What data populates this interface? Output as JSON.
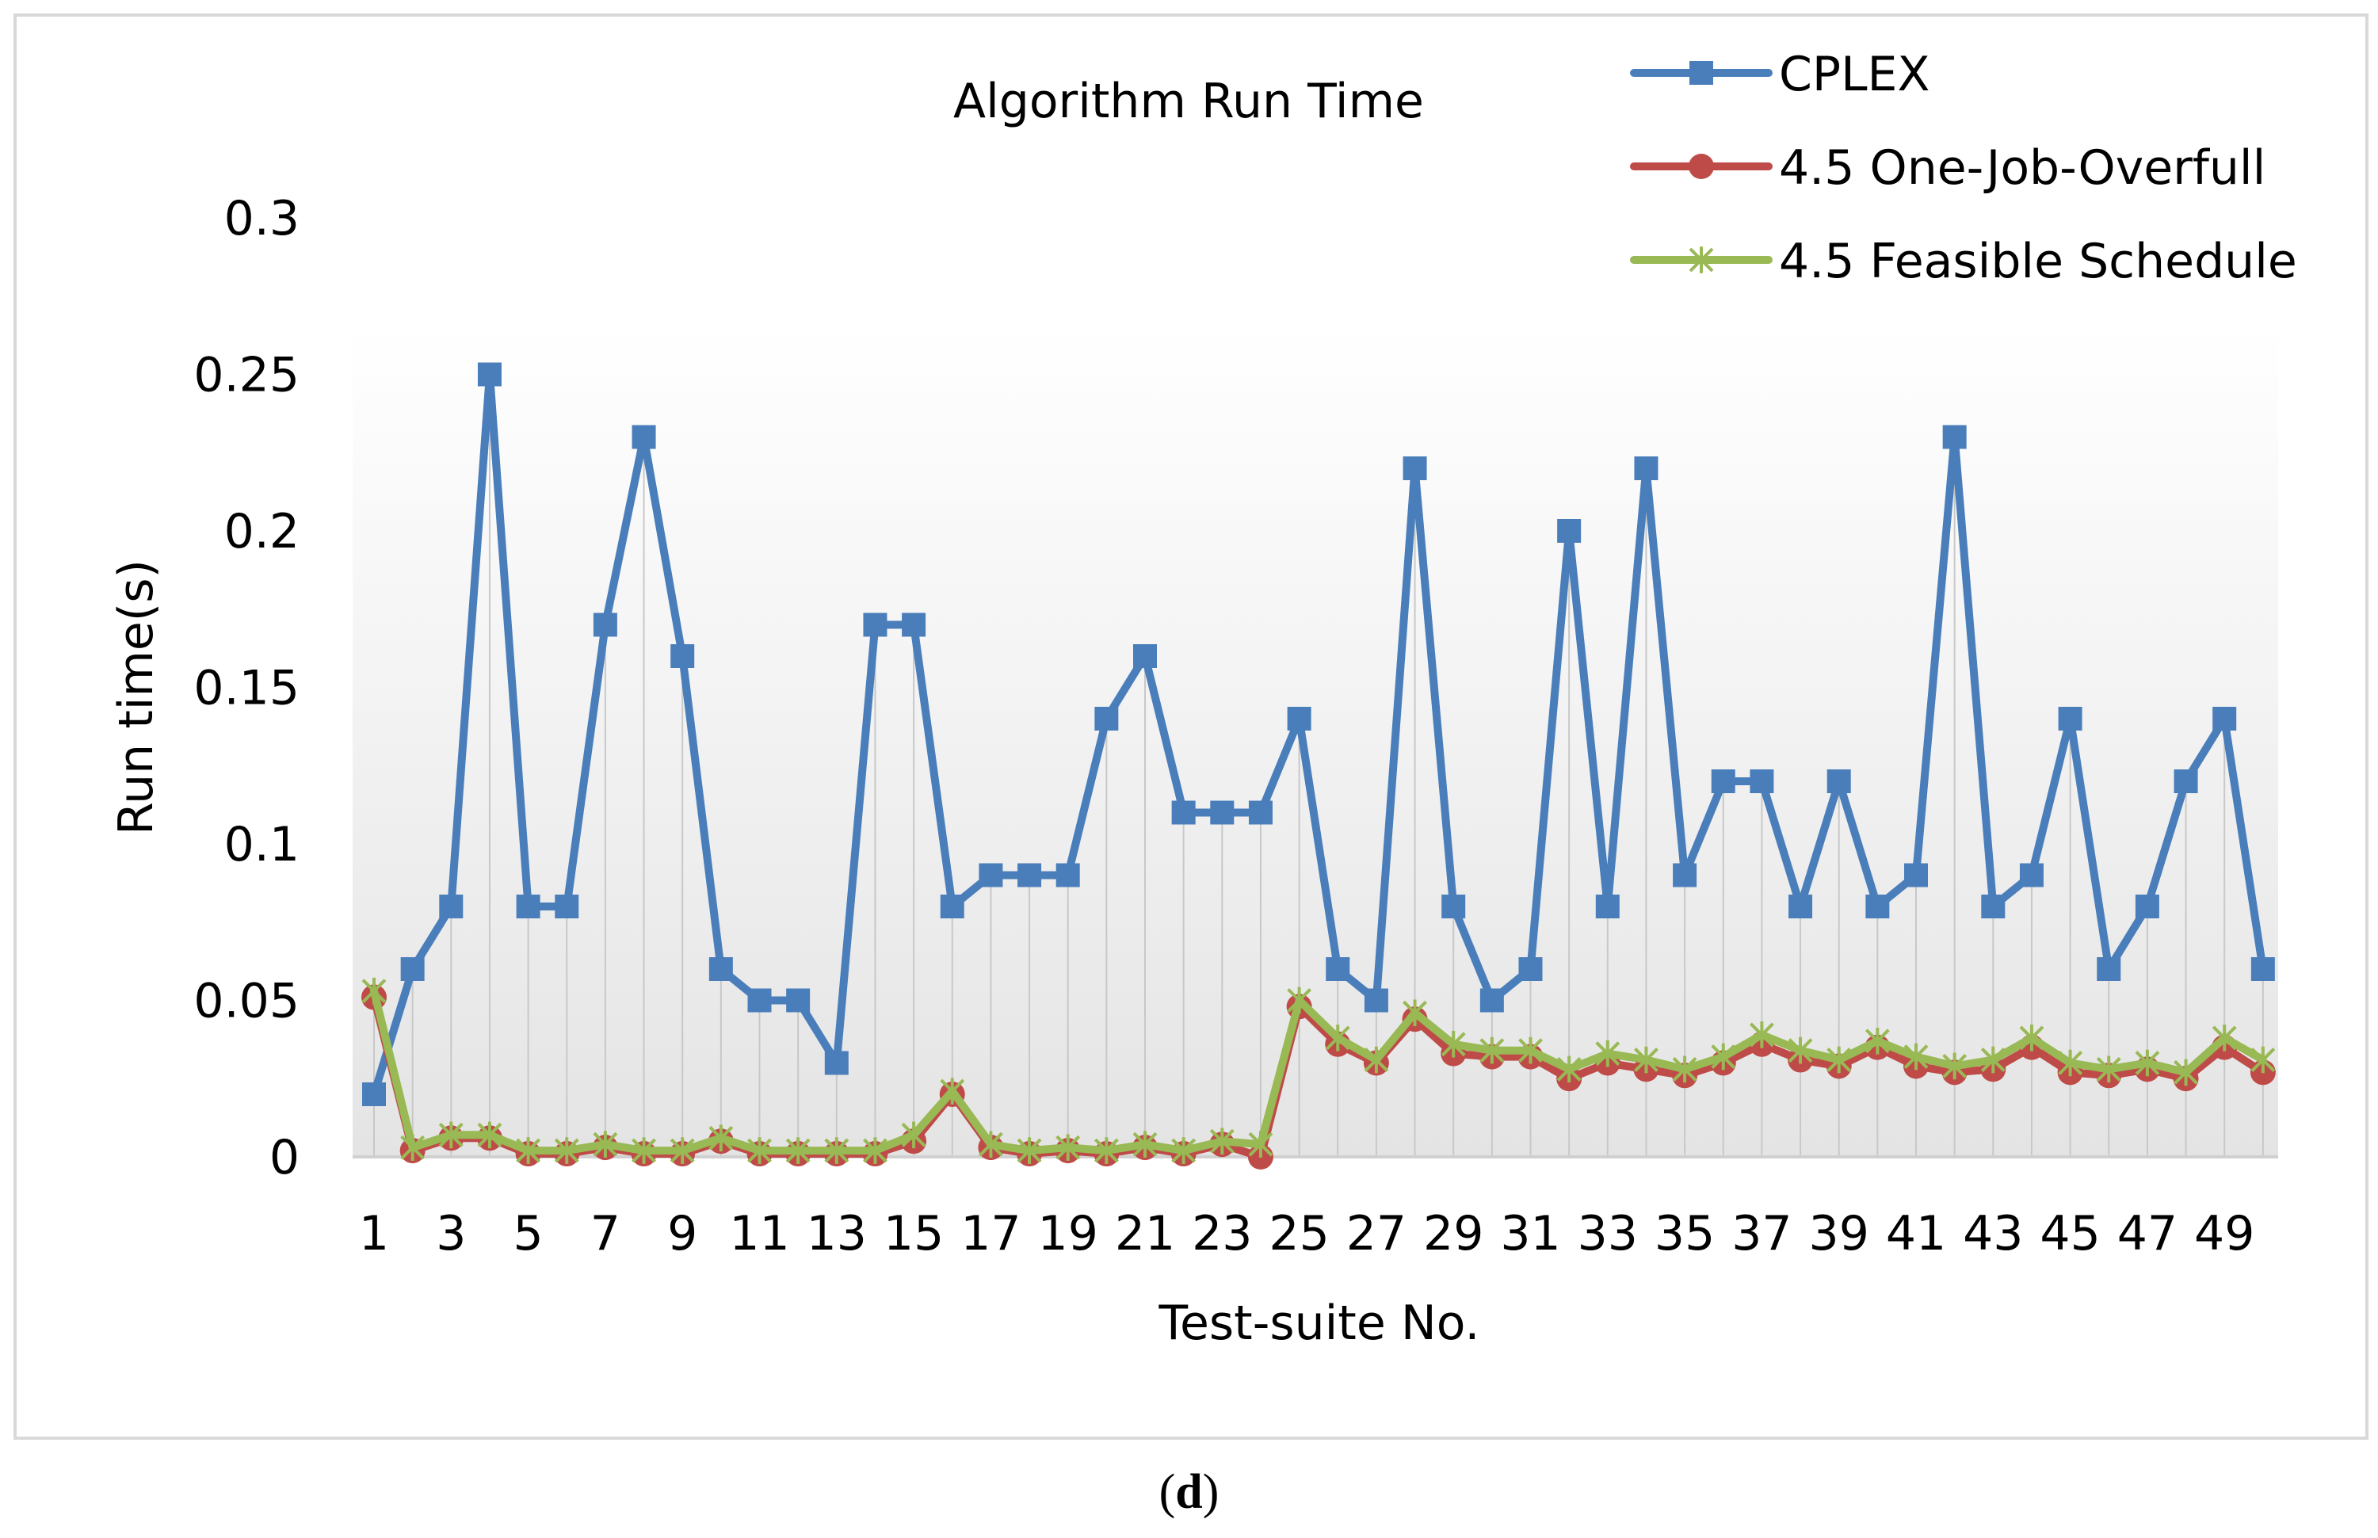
{
  "chart_data": {
    "type": "line",
    "title": "Algorithm Run Time",
    "xlabel": "Test-suite No.",
    "ylabel": "Run time(s)",
    "ylim": [
      0,
      0.3
    ],
    "yticks": [
      "0",
      "0.05",
      "0.1",
      "0.15",
      "0.2",
      "0.25",
      "0.3"
    ],
    "ytick_values": [
      0,
      0.05,
      0.1,
      0.15,
      0.2,
      0.25,
      0.3
    ],
    "x": [
      1,
      2,
      3,
      4,
      5,
      6,
      7,
      8,
      9,
      10,
      11,
      12,
      13,
      14,
      15,
      16,
      17,
      18,
      19,
      20,
      21,
      22,
      23,
      24,
      25,
      26,
      27,
      28,
      29,
      30,
      31,
      32,
      33,
      34,
      35,
      36,
      37,
      38,
      39,
      40,
      41,
      42,
      43,
      44,
      45,
      46,
      47,
      48,
      49,
      50
    ],
    "xtick_labels": [
      "1",
      "3",
      "5",
      "7",
      "9",
      "11",
      "13",
      "15",
      "17",
      "19",
      "21",
      "23",
      "25",
      "27",
      "29",
      "31",
      "33",
      "35",
      "37",
      "39",
      "41",
      "43",
      "45",
      "47",
      "49"
    ],
    "xtick_positions": [
      1,
      3,
      5,
      7,
      9,
      11,
      13,
      15,
      17,
      19,
      21,
      23,
      25,
      27,
      29,
      31,
      33,
      35,
      37,
      39,
      41,
      43,
      45,
      47,
      49
    ],
    "legend_position": "top-right",
    "grid": "vertical drop lines",
    "series": [
      {
        "name": "CPLEX",
        "color": "#4a7ebb",
        "marker": "square",
        "values": [
          0.02,
          0.06,
          0.08,
          0.25,
          0.08,
          0.08,
          0.17,
          0.23,
          0.16,
          0.06,
          0.05,
          0.05,
          0.03,
          0.17,
          0.17,
          0.08,
          0.09,
          0.09,
          0.09,
          0.14,
          0.16,
          0.11,
          0.11,
          0.11,
          0.14,
          0.06,
          0.05,
          0.22,
          0.08,
          0.05,
          0.06,
          0.2,
          0.08,
          0.22,
          0.09,
          0.12,
          0.12,
          0.08,
          0.12,
          0.08,
          0.09,
          0.23,
          0.08,
          0.09,
          0.14,
          0.06,
          0.08,
          0.12,
          0.14,
          0.06
        ]
      },
      {
        "name": "4.5 One-Job-Overfull",
        "color": "#be4b48",
        "marker": "circle",
        "values": [
          0.051,
          0.002,
          0.006,
          0.006,
          0.001,
          0.001,
          0.003,
          0.001,
          0.001,
          0.005,
          0.001,
          0.001,
          0.001,
          0.001,
          0.005,
          0.02,
          0.003,
          0.001,
          0.002,
          0.001,
          0.003,
          0.001,
          0.004,
          0.0,
          0.048,
          0.036,
          0.03,
          0.044,
          0.033,
          0.032,
          0.032,
          0.025,
          0.03,
          0.028,
          0.026,
          0.03,
          0.036,
          0.031,
          0.029,
          0.035,
          0.029,
          0.027,
          0.028,
          0.035,
          0.027,
          0.026,
          0.028,
          0.025,
          0.035,
          0.027
        ]
      },
      {
        "name": "4.5 Feasible Schedule",
        "color": "#98b954",
        "marker": "x",
        "values": [
          0.053,
          0.003,
          0.007,
          0.007,
          0.002,
          0.002,
          0.004,
          0.002,
          0.002,
          0.006,
          0.002,
          0.002,
          0.002,
          0.002,
          0.007,
          0.021,
          0.004,
          0.002,
          0.003,
          0.002,
          0.004,
          0.002,
          0.005,
          0.004,
          0.05,
          0.038,
          0.031,
          0.046,
          0.036,
          0.034,
          0.034,
          0.028,
          0.033,
          0.031,
          0.028,
          0.032,
          0.039,
          0.034,
          0.031,
          0.037,
          0.032,
          0.029,
          0.031,
          0.038,
          0.03,
          0.028,
          0.03,
          0.027,
          0.038,
          0.031
        ]
      }
    ]
  },
  "caption": {
    "open": "(",
    "letter": "d",
    "close": ")"
  }
}
